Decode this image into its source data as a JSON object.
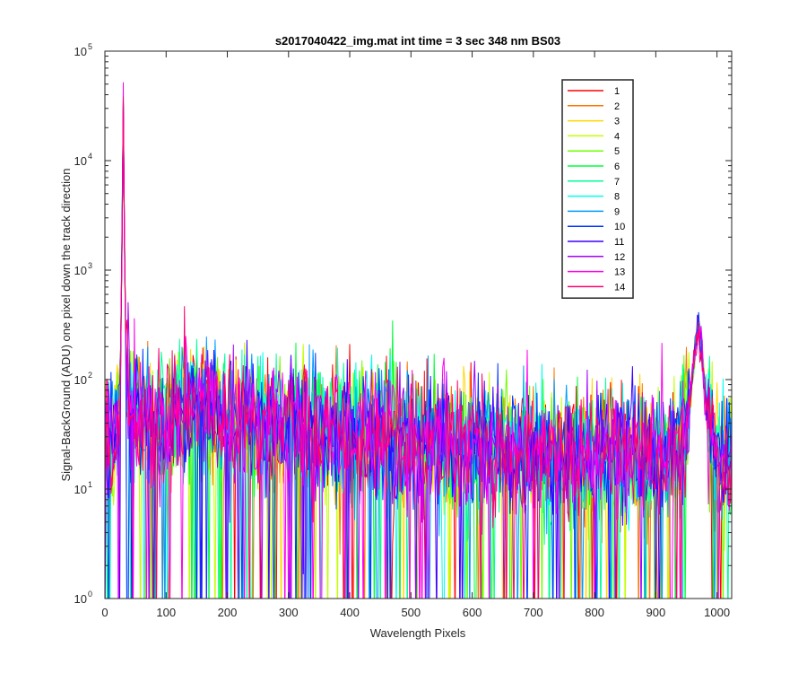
{
  "chart_data": {
    "type": "line",
    "title": "s2017040422_img.mat int time = 3 sec  348 nm BS03",
    "xlabel": "Wavelength Pixels",
    "ylabel": "Signal-BackGround (ADU) one pixel down the track direction",
    "xlim": [
      0,
      1024
    ],
    "ylim": [
      1,
      100000
    ],
    "yscale": "log",
    "x_ticks": [
      0,
      100,
      200,
      300,
      400,
      500,
      600,
      700,
      800,
      900,
      1000
    ],
    "y_ticks": [
      {
        "value": 1,
        "base": "10",
        "exp": "0"
      },
      {
        "value": 10,
        "base": "10",
        "exp": "1"
      },
      {
        "value": 100,
        "base": "10",
        "exp": "2"
      },
      {
        "value": 1000,
        "base": "10",
        "exp": "3"
      },
      {
        "value": 10000,
        "base": "10",
        "exp": "4"
      },
      {
        "value": 100000,
        "base": "10",
        "exp": "5"
      }
    ],
    "grid": false,
    "legend_position": "top-right",
    "features": {
      "x": [
        0,
        10,
        20,
        25,
        28,
        30,
        32,
        35,
        40,
        60,
        100,
        140,
        180,
        200,
        250,
        300,
        400,
        500,
        600,
        700,
        800,
        900,
        940,
        955,
        965,
        970,
        975,
        985,
        1000,
        1024
      ],
      "y": [
        25,
        28,
        30,
        60,
        2000,
        33000,
        2000,
        80,
        60,
        45,
        40,
        62,
        55,
        42,
        40,
        38,
        33,
        28,
        24,
        22,
        21,
        21,
        23,
        60,
        200,
        300,
        200,
        40,
        20,
        18
      ]
    },
    "series": [
      {
        "name": "1",
        "color": "#ff0000"
      },
      {
        "name": "2",
        "color": "#ff7400"
      },
      {
        "name": "3",
        "color": "#ffd700"
      },
      {
        "name": "4",
        "color": "#c3ff00"
      },
      {
        "name": "5",
        "color": "#6dff00"
      },
      {
        "name": "6",
        "color": "#00ff3a"
      },
      {
        "name": "7",
        "color": "#00ff9b"
      },
      {
        "name": "8",
        "color": "#00ffee"
      },
      {
        "name": "9",
        "color": "#009bff"
      },
      {
        "name": "10",
        "color": "#0036ff"
      },
      {
        "name": "11",
        "color": "#3a00ff"
      },
      {
        "name": "12",
        "color": "#a000ff"
      },
      {
        "name": "13",
        "color": "#ff00ee"
      },
      {
        "name": "14",
        "color": "#ff0070"
      }
    ]
  }
}
